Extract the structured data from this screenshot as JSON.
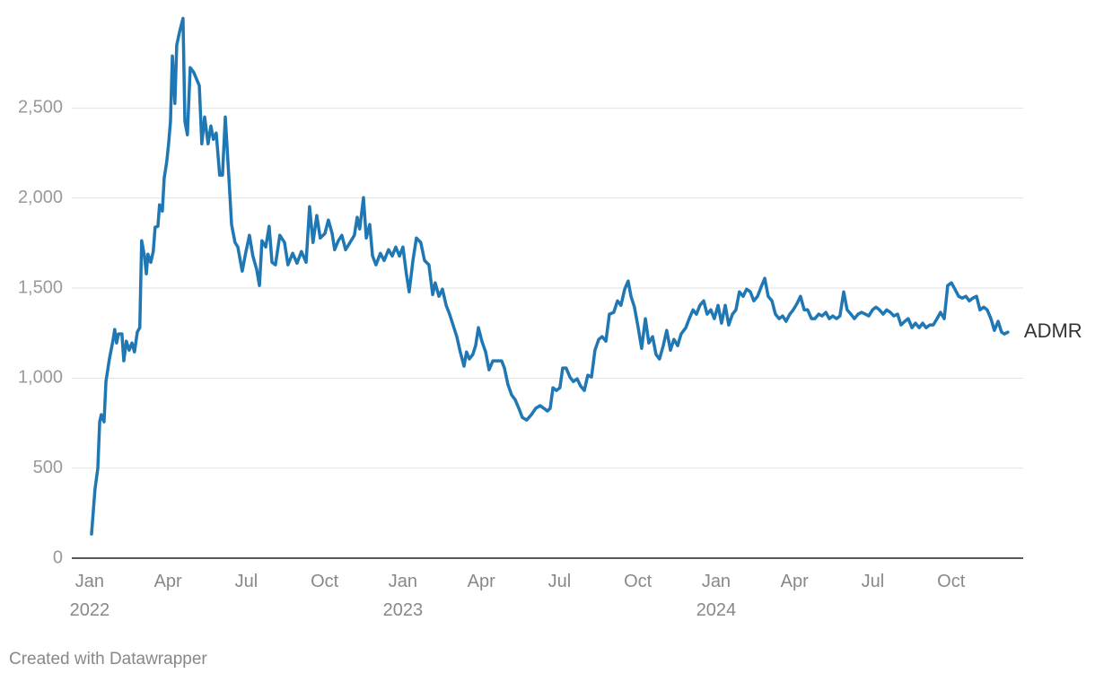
{
  "chart_data": {
    "type": "line",
    "x": [
      2022.006,
      2022.017,
      2022.026,
      2022.032,
      2022.037,
      2022.046,
      2022.052,
      2022.063,
      2022.074,
      2022.08,
      2022.086,
      2022.092,
      2022.103,
      2022.109,
      2022.117,
      2022.126,
      2022.135,
      2022.143,
      2022.152,
      2022.16,
      2022.166,
      2022.175,
      2022.181,
      2022.186,
      2022.195,
      2022.203,
      2022.209,
      2022.218,
      2022.223,
      2022.232,
      2022.238,
      2022.246,
      2022.252,
      2022.258,
      2022.264,
      2022.272,
      2022.278,
      2022.287,
      2022.298,
      2022.304,
      2022.312,
      2022.321,
      2022.332,
      2022.35,
      2022.358,
      2022.367,
      2022.378,
      2022.387,
      2022.395,
      2022.404,
      2022.415,
      2022.424,
      2022.433,
      2022.444,
      2022.453,
      2022.464,
      2022.473,
      2022.487,
      2022.499,
      2022.51,
      2022.521,
      2022.533,
      2022.542,
      2022.55,
      2022.562,
      2022.573,
      2022.582,
      2022.593,
      2022.607,
      2022.622,
      2022.633,
      2022.648,
      2022.662,
      2022.676,
      2022.691,
      2022.702,
      2022.713,
      2022.725,
      2022.736,
      2022.751,
      2022.762,
      2022.774,
      2022.782,
      2022.794,
      2022.805,
      2022.817,
      2022.831,
      2022.845,
      2022.854,
      2022.862,
      2022.874,
      2022.883,
      2022.894,
      2022.903,
      2022.914,
      2022.928,
      2022.94,
      2022.954,
      2022.966,
      2022.977,
      2022.989,
      2023.0,
      2023.011,
      2023.02,
      2023.032,
      2023.043,
      2023.057,
      2023.069,
      2023.083,
      2023.095,
      2023.103,
      2023.115,
      2023.126,
      2023.138,
      2023.149,
      2023.16,
      2023.172,
      2023.183,
      2023.195,
      2023.203,
      2023.212,
      2023.223,
      2023.232,
      2023.241,
      2023.252,
      2023.264,
      2023.275,
      2023.287,
      2023.301,
      2023.315,
      2023.324,
      2023.335,
      2023.347,
      2023.358,
      2023.37,
      2023.381,
      2023.395,
      2023.41,
      2023.424,
      2023.438,
      2023.45,
      2023.461,
      2023.47,
      2023.479,
      2023.49,
      2023.501,
      2023.51,
      2023.521,
      2023.533,
      2023.544,
      2023.556,
      2023.567,
      2023.579,
      2023.59,
      2023.602,
      2023.613,
      2023.625,
      2023.636,
      2023.648,
      2023.659,
      2023.673,
      2023.685,
      2023.696,
      2023.708,
      2023.719,
      2023.728,
      2023.739,
      2023.751,
      2023.762,
      2023.774,
      2023.785,
      2023.797,
      2023.808,
      2023.819,
      2023.831,
      2023.842,
      2023.854,
      2023.865,
      2023.877,
      2023.888,
      2023.903,
      2023.914,
      2023.926,
      2023.937,
      2023.948,
      2023.96,
      2023.971,
      2023.983,
      2023.994,
      2024.006,
      2024.017,
      2024.029,
      2024.04,
      2024.052,
      2024.063,
      2024.074,
      2024.086,
      2024.097,
      2024.109,
      2024.12,
      2024.132,
      2024.143,
      2024.155,
      2024.166,
      2024.178,
      2024.189,
      2024.201,
      2024.212,
      2024.223,
      2024.235,
      2024.246,
      2024.258,
      2024.269,
      2024.281,
      2024.292,
      2024.304,
      2024.315,
      2024.327,
      2024.338,
      2024.35,
      2024.361,
      2024.372,
      2024.384,
      2024.395,
      2024.407,
      2024.418,
      2024.43,
      2024.441,
      2024.453,
      2024.464,
      2024.476,
      2024.487,
      2024.499,
      2024.51,
      2024.521,
      2024.533,
      2024.544,
      2024.556,
      2024.567,
      2024.579,
      2024.59,
      2024.602,
      2024.613,
      2024.625,
      2024.636,
      2024.648,
      2024.659,
      2024.67,
      2024.682,
      2024.693,
      2024.705,
      2024.716,
      2024.728,
      2024.739,
      2024.751,
      2024.762,
      2024.774,
      2024.785,
      2024.797,
      2024.808,
      2024.819,
      2024.831,
      2024.842,
      2024.854,
      2024.865,
      2024.877,
      2024.888,
      2024.9,
      2024.911,
      2024.92,
      2024.931
    ],
    "series": [
      {
        "name": "ADMR",
        "color": "#1f77b4",
        "values": [
          134,
          383,
          498,
          757,
          797,
          757,
          981,
          1106,
          1205,
          1270,
          1195,
          1245,
          1245,
          1096,
          1205,
          1155,
          1195,
          1145,
          1255,
          1280,
          1763,
          1678,
          1579,
          1688,
          1643,
          1703,
          1838,
          1843,
          1962,
          1927,
          2112,
          2201,
          2301,
          2425,
          2789,
          2525,
          2849,
          2923,
          2998,
          2425,
          2351,
          2724,
          2699,
          2624,
          2301,
          2450,
          2301,
          2400,
          2326,
          2361,
          2127,
          2127,
          2450,
          2127,
          1853,
          1753,
          1728,
          1594,
          1703,
          1793,
          1678,
          1604,
          1514,
          1763,
          1728,
          1843,
          1643,
          1629,
          1793,
          1753,
          1629,
          1693,
          1638,
          1703,
          1643,
          1952,
          1753,
          1903,
          1778,
          1803,
          1878,
          1803,
          1713,
          1763,
          1793,
          1713,
          1753,
          1793,
          1893,
          1828,
          2002,
          1778,
          1853,
          1678,
          1629,
          1693,
          1653,
          1713,
          1678,
          1728,
          1678,
          1728,
          1579,
          1479,
          1653,
          1778,
          1753,
          1653,
          1629,
          1464,
          1529,
          1454,
          1494,
          1404,
          1355,
          1295,
          1230,
          1145,
          1066,
          1145,
          1106,
          1131,
          1180,
          1280,
          1205,
          1145,
          1046,
          1096,
          1096,
          1096,
          1056,
          966,
          906,
          881,
          832,
          782,
          767,
          797,
          832,
          847,
          832,
          817,
          832,
          946,
          931,
          946,
          1056,
          1056,
          1006,
          981,
          996,
          956,
          931,
          1016,
          1006,
          1155,
          1215,
          1230,
          1205,
          1355,
          1365,
          1429,
          1404,
          1494,
          1539,
          1454,
          1394,
          1280,
          1165,
          1330,
          1195,
          1230,
          1131,
          1106,
          1180,
          1265,
          1155,
          1215,
          1180,
          1245,
          1280,
          1330,
          1379,
          1355,
          1404,
          1429,
          1355,
          1379,
          1330,
          1404,
          1305,
          1404,
          1295,
          1355,
          1379,
          1479,
          1454,
          1494,
          1479,
          1429,
          1454,
          1504,
          1554,
          1454,
          1429,
          1355,
          1330,
          1345,
          1315,
          1355,
          1379,
          1414,
          1454,
          1379,
          1379,
          1330,
          1330,
          1355,
          1345,
          1365,
          1330,
          1345,
          1330,
          1345,
          1479,
          1379,
          1355,
          1330,
          1355,
          1365,
          1355,
          1345,
          1379,
          1394,
          1379,
          1355,
          1379,
          1365,
          1345,
          1355,
          1295,
          1315,
          1330,
          1280,
          1305,
          1280,
          1305,
          1280,
          1295,
          1295,
          1330,
          1365,
          1330,
          1514,
          1529,
          1494,
          1454,
          1444,
          1454,
          1429,
          1444,
          1454,
          1379,
          1394,
          1379,
          1330,
          1265,
          1315,
          1255,
          1245,
          1255
        ]
      }
    ],
    "xlim": [
      2021.943,
      2024.98
    ],
    "xticks": [
      {
        "value": 2022,
        "label": "Jan 2022"
      },
      {
        "value": 2022.25,
        "label": "Apr"
      },
      {
        "value": 2022.5,
        "label": "Jul"
      },
      {
        "value": 2022.75,
        "label": "Oct"
      },
      {
        "value": 2023,
        "label": "Jan 2023"
      },
      {
        "value": 2023.25,
        "label": "Apr"
      },
      {
        "value": 2023.5,
        "label": "Jul"
      },
      {
        "value": 2023.75,
        "label": "Oct"
      },
      {
        "value": 2024,
        "label": "Jan 2024"
      },
      {
        "value": 2024.25,
        "label": "Apr"
      },
      {
        "value": 2024.5,
        "label": "Jul"
      },
      {
        "value": 2024.75,
        "label": "Oct"
      }
    ],
    "ylim": [
      0,
      3000
    ],
    "yticks": [
      0,
      {
        "value": 500,
        "label": "500"
      },
      {
        "value": 1000,
        "label": "1,000"
      },
      {
        "value": 1500,
        "label": "1,500"
      },
      {
        "value": 2000,
        "label": "2,000"
      },
      {
        "value": 2500,
        "label": "2,500"
      }
    ],
    "grid": true,
    "credit": "Created with Datawrapper"
  }
}
